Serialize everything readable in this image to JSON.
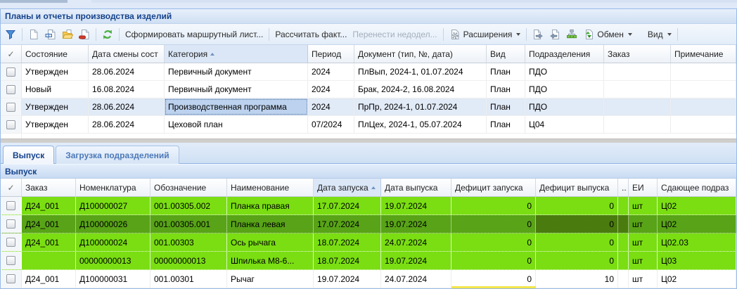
{
  "window": {
    "title": "Планы и отчеты производства изделий"
  },
  "toolbar": {
    "icon_buttons": [
      "filter-icon",
      "new-document-icon",
      "edit-document-icon",
      "open-folder-icon",
      "delete-document-icon",
      "refresh-icon",
      "export-document-icon",
      "import-document-icon",
      "hierarchy-icon"
    ],
    "route_sheet_label": "Сформировать маршрутный лист...",
    "calc_fact_label": "Рассчитать факт...",
    "move_backlog_label": "Перенести недодел...",
    "move_backlog_enabled": false,
    "extensions_label": "Расширения",
    "exchange_label": "Обмен",
    "view_label": "Вид"
  },
  "plans_grid": {
    "select_glyph": "✓",
    "columns": [
      "Состояние",
      "Дата смены сост",
      "Категория",
      "Период",
      "Документ (тип, №, дата)",
      "Вид",
      "Подразделения",
      "Заказ",
      "Примечание"
    ],
    "sorted_column": "Категория",
    "sort_direction": "asc",
    "rows": [
      {
        "cells": [
          "Утвержден",
          "28.06.2024",
          "Первичный документ",
          "2024",
          "ПлВып, 2024-1, 01.07.2024",
          "План",
          "ПДО",
          "",
          ""
        ]
      },
      {
        "cells": [
          "Новый",
          "16.08.2024",
          "Первичный документ",
          "2024",
          "Брак, 2024-2, 16.08.2024",
          "План",
          "ПДО",
          "",
          ""
        ]
      },
      {
        "cells": [
          "Утвержден",
          "28.06.2024",
          "Производственная программа",
          "2024",
          "ПрПр, 2024-1, 01.07.2024",
          "План",
          "ПДО",
          "",
          ""
        ],
        "highlight": "selected",
        "focus_cells": [
          2
        ]
      },
      {
        "cells": [
          "Утвержден",
          "28.06.2024",
          "Цеховой план",
          "07/2024",
          "ПлЦех, 2024-1, 05.07.2024",
          "План",
          "Ц04",
          "",
          ""
        ]
      }
    ]
  },
  "tabs": [
    {
      "label": "Выпуск",
      "active": true
    },
    {
      "label": "Загрузка подразделений",
      "active": false
    }
  ],
  "output_panel": {
    "title": "Выпуск"
  },
  "output_grid": {
    "select_glyph": "✓",
    "columns": [
      "Заказ",
      "Номенклатура",
      "Обозначение",
      "Наименование",
      "Дата запуска",
      "Дата выпуска",
      "Дефицит запуска",
      "Дефицит выпуска",
      "..",
      "ЕИ",
      "Сдающее подраз"
    ],
    "sorted_column": "Дата запуска",
    "sort_direction": "asc",
    "rows": [
      {
        "cells": [
          "Д24_001",
          "Д100000027",
          "001.00305.002",
          "Планка правая",
          "17.07.2024",
          "19.07.2024",
          "0",
          "0",
          "",
          "шт",
          "Ц02"
        ],
        "highlight": "green"
      },
      {
        "cells": [
          "Д24_001",
          "Д100000026",
          "001.00305.001",
          "Планка левая",
          "17.07.2024",
          "19.07.2024",
          "0",
          "0",
          "",
          "шт",
          "Ц02"
        ],
        "highlight": "sel-green",
        "focus_cells": [
          7,
          8
        ]
      },
      {
        "cells": [
          "Д24_001",
          "Д100000024",
          "001.00303",
          "Ось рычага",
          "18.07.2024",
          "24.07.2024",
          "0",
          "0",
          "",
          "шт",
          "Ц02.03"
        ],
        "highlight": "green"
      },
      {
        "cells": [
          "",
          "00000000013",
          "00000000013",
          "Шпилька М8-6...",
          "18.07.2024",
          "19.07.2024",
          "0",
          "0",
          "",
          "шт",
          "Ц03"
        ],
        "highlight": "green"
      },
      {
        "cells": [
          "Д24_001",
          "Д100000031",
          "001.00301",
          "Рычаг",
          "19.07.2024",
          "24.07.2024",
          "0",
          "10",
          "",
          "шт",
          "Ц02"
        ]
      }
    ]
  },
  "colors": {
    "accent_blue": "#15428b",
    "selection_blue": "#e1eaf7",
    "selection_cell_blue": "#bcd2ee",
    "row_green": "#7ade12",
    "row_green_selected": "#58a317",
    "cell_green_focused": "#4a7b0e",
    "deficit_warning_yellow": "#f4e54b",
    "panel_border": "#99bbe8"
  }
}
